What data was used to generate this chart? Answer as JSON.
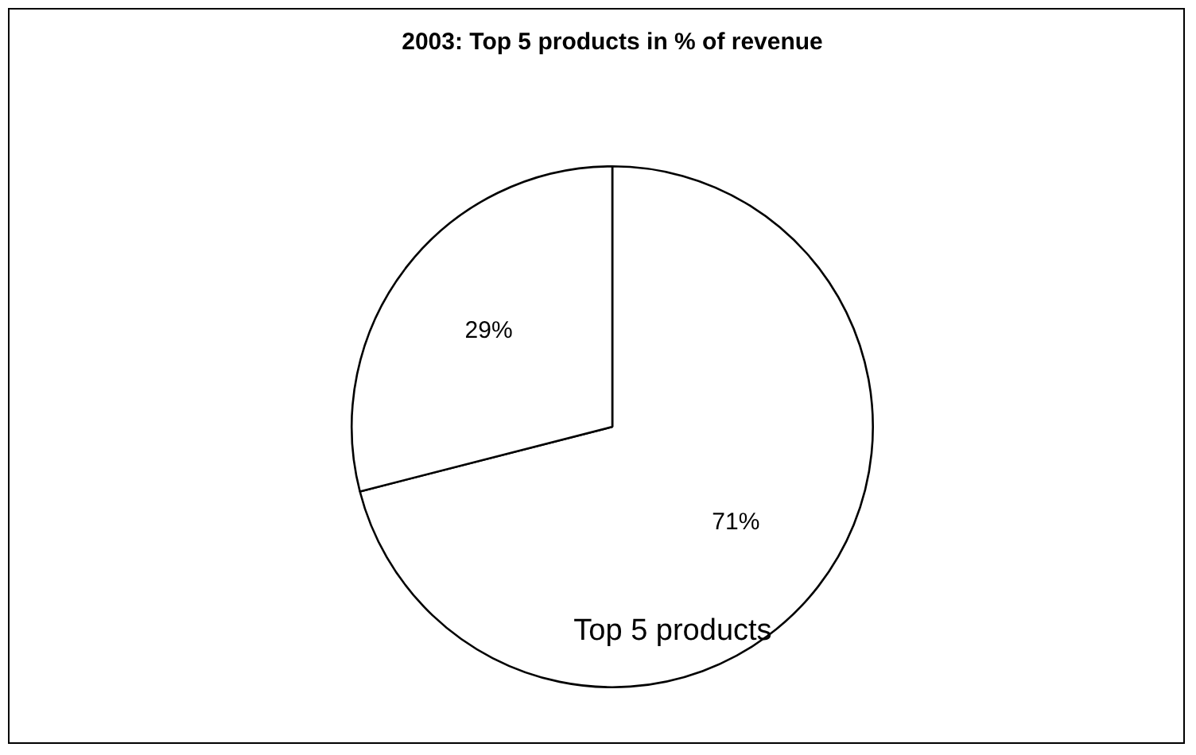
{
  "chart_data": {
    "type": "pie",
    "title": "2003: Top 5 products in % of revenue",
    "categories": [
      "Top 5 products",
      null
    ],
    "values": [
      71,
      29
    ],
    "colors": [
      "#ffffff",
      "#ffffff"
    ],
    "value_labels": [
      "71%",
      "29%"
    ],
    "legend": false
  }
}
